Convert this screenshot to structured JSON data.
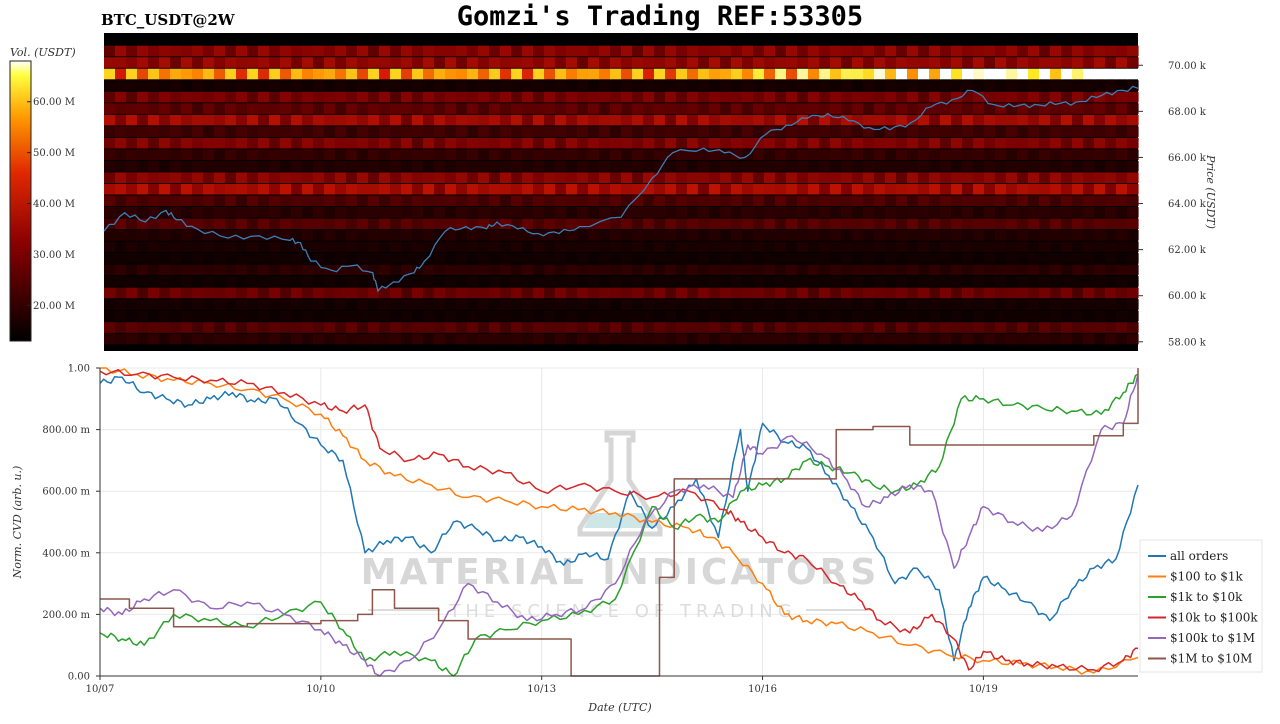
{
  "header": {
    "title": "Gomzi's Trading REF:53305",
    "pair_label": "BTC_USDT@2W"
  },
  "watermark": {
    "brand": "MATERIAL INDICATORS",
    "tagline": "THE SCIENCE OF TRADING"
  },
  "colors": {
    "price_line": "#3b7fb6",
    "heatmap_low": "#000000",
    "heatmap_mid": "#b00000",
    "heatmap_high": "#ffff40",
    "heatmap_max": "#ffffff"
  },
  "chart_data": [
    {
      "type": "heatmap",
      "colorbar_label": "Vol. (USDT)",
      "colorbar_ticks": [
        "60.00 M",
        "50.00 M",
        "40.00 M",
        "30.00 M",
        "20.00 M"
      ],
      "colorbar_values": [
        60,
        50,
        40,
        30,
        20
      ],
      "colorbar_range": [
        13,
        68
      ],
      "ylabel": "Price (USDT)",
      "y_ticks": [
        "70.00 k",
        "68.00 k",
        "66.00 k",
        "64.00 k",
        "62.00 k",
        "60.00 k",
        "58.00 k"
      ],
      "y_tick_values": [
        70,
        68,
        66,
        64,
        62,
        60,
        58
      ],
      "ylim": [
        57.6,
        71.4
      ],
      "bands": [
        {
          "price": 70.6,
          "level": 0.32
        },
        {
          "price": 70.1,
          "level": 0.35
        },
        {
          "price": 69.6,
          "level": 0.72
        },
        {
          "price": 69.1,
          "level": 0.05
        },
        {
          "price": 68.6,
          "level": 0.28
        },
        {
          "price": 68.1,
          "level": 0.22
        },
        {
          "price": 67.6,
          "level": 0.38
        },
        {
          "price": 67.1,
          "level": 0.15
        },
        {
          "price": 66.6,
          "level": 0.3
        },
        {
          "price": 66.1,
          "level": 0.12
        },
        {
          "price": 65.6,
          "level": 0.08
        },
        {
          "price": 65.1,
          "level": 0.32
        },
        {
          "price": 64.6,
          "level": 0.4
        },
        {
          "price": 64.1,
          "level": 0.18
        },
        {
          "price": 63.6,
          "level": 0.1
        },
        {
          "price": 63.1,
          "level": 0.2
        },
        {
          "price": 62.6,
          "level": 0.08
        },
        {
          "price": 62.1,
          "level": 0.06
        },
        {
          "price": 61.6,
          "level": 0.04
        },
        {
          "price": 61.1,
          "level": 0.1
        },
        {
          "price": 60.6,
          "level": 0.04
        },
        {
          "price": 60.1,
          "level": 0.25
        },
        {
          "price": 59.6,
          "level": 0.05
        },
        {
          "price": 59.1,
          "level": 0.04
        },
        {
          "price": 58.6,
          "level": 0.2
        },
        {
          "price": 58.1,
          "level": 0.1
        }
      ],
      "price_series": {
        "x": [
          0,
          0.02,
          0.04,
          0.06,
          0.07,
          0.09,
          0.12,
          0.15,
          0.18,
          0.19,
          0.2,
          0.22,
          0.24,
          0.26,
          0.265,
          0.28,
          0.3,
          0.31,
          0.33,
          0.35,
          0.37,
          0.38,
          0.4,
          0.42,
          0.44,
          0.46,
          0.5,
          0.53,
          0.55,
          0.58,
          0.6,
          0.62,
          0.64,
          0.66,
          0.68,
          0.7,
          0.72,
          0.74,
          0.76,
          0.78,
          0.8,
          0.82,
          0.84,
          0.86,
          0.88,
          0.9,
          0.92,
          0.94,
          0.96,
          0.98,
          1.0
        ],
        "y": [
          62.8,
          63.6,
          63.2,
          63.7,
          63.3,
          62.9,
          62.5,
          62.6,
          62.4,
          62.3,
          61.5,
          61.1,
          61.3,
          61.0,
          60.2,
          60.6,
          61.0,
          61.5,
          62.8,
          63.0,
          62.9,
          63.2,
          62.9,
          62.7,
          62.7,
          63.0,
          63.4,
          65.1,
          66.2,
          66.4,
          66.2,
          66.0,
          67.0,
          67.4,
          67.7,
          67.9,
          67.6,
          67.3,
          67.2,
          67.5,
          68.2,
          68.5,
          68.9,
          68.3,
          68.2,
          68.3,
          68.3,
          68.4,
          68.6,
          68.9,
          69.0
        ]
      },
      "x_range": [
        0,
        1
      ]
    },
    {
      "type": "line",
      "xlabel": "Date (UTC)",
      "ylabel": "Norm. CVD (arb. u.)",
      "x_ticks": [
        "10/07",
        "10/10",
        "10/13",
        "10/16",
        "10/19"
      ],
      "x_tick_positions": [
        0,
        3,
        6,
        9,
        12
      ],
      "xlim": [
        0,
        14.1
      ],
      "y_ticks": [
        "1.00",
        "800.00 m",
        "600.00 m",
        "400.00 m",
        "200.00 m",
        "0.00"
      ],
      "y_tick_values": [
        1,
        0.8,
        0.6,
        0.4,
        0.2,
        0
      ],
      "ylim": [
        0,
        1
      ],
      "grid": true,
      "legend_position": "bottom-right",
      "series": [
        {
          "name": "all orders",
          "color": "#1f77b4",
          "x": [
            0,
            0.3,
            0.6,
            0.9,
            1.2,
            1.5,
            1.8,
            2.1,
            2.4,
            2.7,
            3.0,
            3.3,
            3.6,
            3.9,
            4.2,
            4.5,
            4.8,
            5.1,
            5.4,
            5.7,
            6.0,
            6.3,
            6.6,
            6.9,
            7.2,
            7.5,
            7.8,
            8.1,
            8.4,
            8.7,
            8.8,
            9.0,
            9.3,
            9.6,
            9.9,
            10.2,
            10.5,
            10.8,
            11.1,
            11.4,
            11.6,
            11.8,
            12.0,
            12.3,
            12.6,
            12.9,
            13.2,
            13.5,
            13.8,
            14.1
          ],
          "y": [
            0.95,
            0.97,
            0.92,
            0.9,
            0.88,
            0.9,
            0.92,
            0.89,
            0.9,
            0.82,
            0.75,
            0.7,
            0.4,
            0.44,
            0.45,
            0.4,
            0.5,
            0.48,
            0.44,
            0.45,
            0.42,
            0.36,
            0.4,
            0.38,
            0.6,
            0.48,
            0.55,
            0.64,
            0.45,
            0.8,
            0.6,
            0.82,
            0.76,
            0.74,
            0.65,
            0.55,
            0.45,
            0.3,
            0.35,
            0.28,
            0.05,
            0.22,
            0.32,
            0.28,
            0.24,
            0.18,
            0.28,
            0.35,
            0.38,
            0.62
          ]
        },
        {
          "name": "$100 to $1k",
          "color": "#ff7f0e",
          "x": [
            0,
            0.5,
            1.0,
            1.5,
            2.0,
            2.5,
            3.0,
            3.3,
            3.6,
            4.0,
            4.5,
            5.0,
            5.5,
            6.0,
            6.5,
            7.0,
            7.5,
            8.0,
            8.3,
            8.6,
            9.0,
            9.3,
            9.6,
            10.0,
            10.5,
            11.0,
            11.5,
            12.0,
            12.5,
            13.0,
            13.5,
            14.1
          ],
          "y": [
            1.0,
            0.98,
            0.96,
            0.95,
            0.93,
            0.9,
            0.85,
            0.78,
            0.7,
            0.65,
            0.62,
            0.58,
            0.57,
            0.55,
            0.54,
            0.53,
            0.5,
            0.48,
            0.45,
            0.4,
            0.3,
            0.2,
            0.18,
            0.17,
            0.14,
            0.1,
            0.07,
            0.05,
            0.04,
            0.03,
            0.01,
            0.06
          ]
        },
        {
          "name": "$1k to $10k",
          "color": "#2ca02c",
          "x": [
            0,
            0.3,
            0.6,
            1.0,
            1.5,
            2.0,
            2.5,
            3.0,
            3.3,
            3.6,
            4.0,
            4.5,
            4.8,
            5.1,
            5.5,
            6.0,
            6.5,
            7.0,
            7.5,
            7.8,
            8.1,
            8.4,
            8.7,
            9.0,
            9.3,
            9.6,
            9.9,
            10.2,
            10.5,
            10.8,
            11.1,
            11.4,
            11.7,
            12.0,
            12.4,
            12.8,
            13.2,
            13.6,
            13.9,
            14.1
          ],
          "y": [
            0.14,
            0.12,
            0.1,
            0.2,
            0.18,
            0.16,
            0.2,
            0.24,
            0.15,
            0.05,
            0.08,
            0.05,
            0.0,
            0.12,
            0.15,
            0.18,
            0.2,
            0.25,
            0.55,
            0.48,
            0.52,
            0.5,
            0.6,
            0.62,
            0.64,
            0.7,
            0.68,
            0.66,
            0.62,
            0.6,
            0.62,
            0.68,
            0.9,
            0.9,
            0.88,
            0.87,
            0.86,
            0.85,
            0.92,
            0.98
          ]
        },
        {
          "name": "$10k to $100k",
          "color": "#d62728",
          "x": [
            0,
            0.5,
            1.0,
            1.5,
            2.0,
            2.5,
            3.0,
            3.3,
            3.6,
            3.8,
            4.2,
            4.6,
            5.0,
            5.5,
            6.0,
            6.5,
            7.0,
            7.5,
            8.0,
            8.5,
            8.7,
            9.0,
            9.3,
            9.6,
            10.0,
            10.3,
            10.6,
            11.0,
            11.3,
            11.6,
            11.8,
            12.0,
            12.3,
            12.6,
            13.0,
            13.5,
            13.9,
            14.1
          ],
          "y": [
            0.99,
            0.98,
            0.97,
            0.96,
            0.95,
            0.92,
            0.88,
            0.86,
            0.88,
            0.74,
            0.7,
            0.72,
            0.68,
            0.66,
            0.6,
            0.62,
            0.6,
            0.58,
            0.6,
            0.54,
            0.5,
            0.45,
            0.4,
            0.38,
            0.3,
            0.25,
            0.18,
            0.14,
            0.2,
            0.12,
            0.02,
            0.08,
            0.05,
            0.04,
            0.03,
            0.02,
            0.05,
            0.09
          ]
        },
        {
          "name": "$100k to $1M",
          "color": "#9467bd",
          "x": [
            0,
            0.3,
            0.6,
            1.0,
            1.5,
            2.0,
            2.5,
            3.0,
            3.3,
            3.6,
            3.8,
            4.2,
            4.6,
            5.0,
            5.4,
            5.8,
            6.2,
            6.6,
            7.0,
            7.4,
            7.8,
            8.2,
            8.6,
            8.8,
            9.0,
            9.4,
            9.8,
            10.1,
            10.4,
            10.7,
            11.0,
            11.3,
            11.6,
            11.8,
            12.0,
            12.4,
            12.8,
            13.2,
            13.6,
            13.9,
            14.1
          ],
          "y": [
            0.22,
            0.2,
            0.25,
            0.28,
            0.22,
            0.24,
            0.2,
            0.15,
            0.1,
            0.05,
            0.0,
            0.05,
            0.15,
            0.3,
            0.24,
            0.18,
            0.2,
            0.22,
            0.3,
            0.5,
            0.6,
            0.62,
            0.58,
            0.75,
            0.72,
            0.78,
            0.72,
            0.65,
            0.55,
            0.58,
            0.62,
            0.6,
            0.35,
            0.45,
            0.55,
            0.5,
            0.47,
            0.52,
            0.8,
            0.82,
            0.98
          ]
        },
        {
          "name": "$1M to $10M",
          "color": "#8c564b",
          "step": true,
          "x": [
            0,
            0.4,
            1.0,
            2.0,
            3.0,
            3.5,
            3.7,
            4.0,
            4.6,
            5.0,
            6.4,
            7.1,
            7.6,
            7.8,
            8.8,
            9.2,
            10.0,
            10.5,
            11.0,
            12.0,
            13.0,
            13.5,
            13.9,
            14.1
          ],
          "y": [
            0.25,
            0.22,
            0.16,
            0.17,
            0.18,
            0.2,
            0.28,
            0.22,
            0.18,
            0.12,
            0.0,
            0.0,
            0.32,
            0.64,
            0.64,
            0.64,
            0.8,
            0.81,
            0.75,
            0.75,
            0.75,
            0.78,
            0.82,
            1.0
          ]
        }
      ]
    }
  ]
}
